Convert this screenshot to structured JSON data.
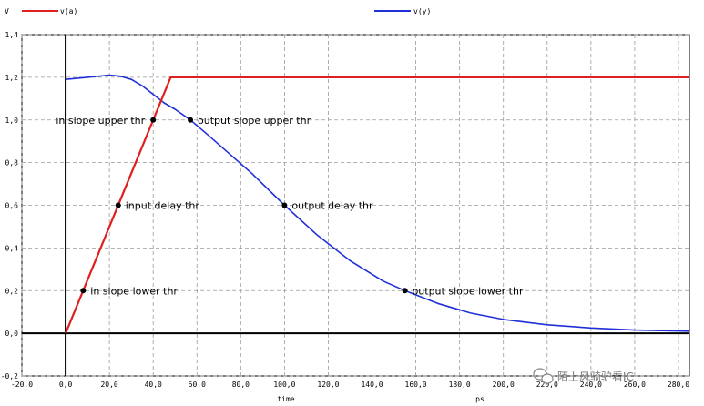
{
  "chart_data": {
    "type": "line",
    "ylabel": "V",
    "xlabel": "time",
    "xunit": "ps",
    "xlim": [
      -20,
      285
    ],
    "ylim": [
      -0.2,
      1.4
    ],
    "xticks": [
      -20,
      0,
      20,
      40,
      60,
      80,
      100,
      120,
      140,
      160,
      180,
      200,
      220,
      240,
      260,
      280
    ],
    "xtick_labels": [
      "-20,0",
      "0,0",
      "20,0",
      "40,0",
      "60,0",
      "80,0",
      "100,0",
      "120,0",
      "140,0",
      "160,0",
      "180,0",
      "200,0",
      "220,0",
      "240,0",
      "260,0",
      "280,0"
    ],
    "yticks": [
      -0.2,
      0,
      0.2,
      0.4,
      0.6,
      0.8,
      1.0,
      1.2,
      1.4
    ],
    "ytick_labels": [
      "-0,2",
      "0,0",
      "0,2",
      "0,4",
      "0,6",
      "0,8",
      "1,0",
      "1,2",
      "1,4"
    ],
    "grid": true,
    "legend_position": "top",
    "series": [
      {
        "name": "v(a)",
        "color": "#e02020",
        "x": [
          0,
          48,
          285
        ],
        "y": [
          0,
          1.2,
          1.2
        ]
      },
      {
        "name": "v(y)",
        "color": "#2030d8",
        "x": [
          0,
          10,
          20,
          25,
          30,
          35,
          40,
          45,
          50,
          57,
          65,
          75,
          85,
          100,
          115,
          130,
          145,
          155,
          170,
          185,
          200,
          220,
          240,
          260,
          285
        ],
        "y": [
          1.19,
          1.2,
          1.21,
          1.205,
          1.19,
          1.16,
          1.12,
          1.08,
          1.05,
          1.0,
          0.93,
          0.84,
          0.75,
          0.6,
          0.46,
          0.34,
          0.245,
          0.2,
          0.14,
          0.095,
          0.065,
          0.04,
          0.025,
          0.015,
          0.01
        ]
      }
    ],
    "annotations": [
      {
        "label": "in slope lower thr",
        "x": 8,
        "y": 0.2,
        "side": "right"
      },
      {
        "label": "input delay thr",
        "x": 24,
        "y": 0.6,
        "side": "right"
      },
      {
        "label": "in slope upper thr",
        "x": 40,
        "y": 1.0,
        "side": "left"
      },
      {
        "label": "output slope upper thr",
        "x": 57,
        "y": 1.0,
        "side": "right"
      },
      {
        "label": "output delay thr",
        "x": 100,
        "y": 0.6,
        "side": "right"
      },
      {
        "label": "output slope lower thr",
        "x": 155,
        "y": 0.2,
        "side": "right"
      }
    ]
  },
  "watermark": {
    "icon": "wechat-icon",
    "text": "陌上风骑驴看IC"
  }
}
